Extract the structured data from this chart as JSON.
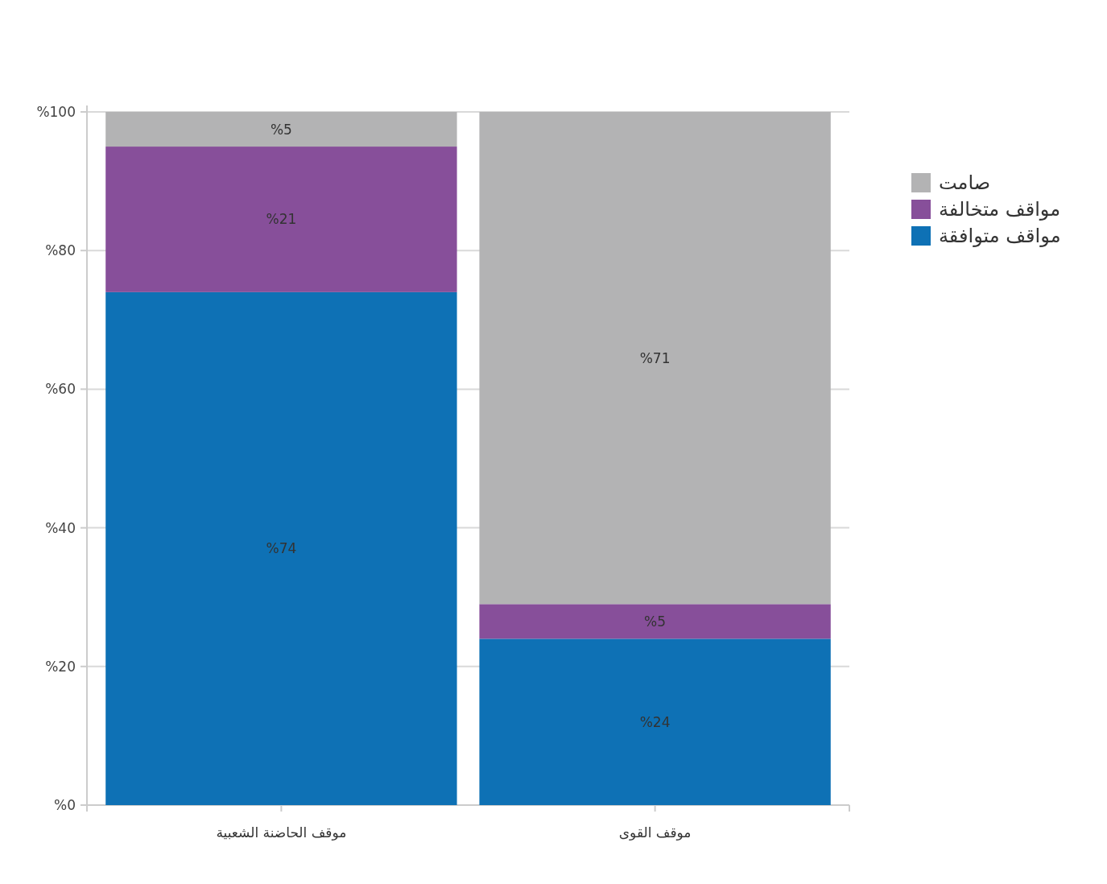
{
  "chart_data": {
    "type": "bar",
    "stacked": true,
    "categories": [
      "موقف الحاضنة الشعبية",
      "موقف القوى"
    ],
    "series": [
      {
        "name": "مواقف متوافقة",
        "color": "#0e71b5",
        "values": [
          74,
          24
        ],
        "value_labels": [
          "%74",
          "%24"
        ]
      },
      {
        "name": "مواقف متخالفة",
        "color": "#874f9a",
        "values": [
          21,
          5
        ],
        "value_labels": [
          "%21",
          "%5"
        ]
      },
      {
        "name": "صامت",
        "color": "#b3b3b4",
        "values": [
          5,
          71
        ],
        "value_labels": [
          "%5",
          "%71"
        ]
      }
    ],
    "ylim": [
      0,
      100
    ],
    "yticks": [
      {
        "value": 0,
        "label": "%0"
      },
      {
        "value": 20,
        "label": "%20"
      },
      {
        "value": 40,
        "label": "%40"
      },
      {
        "value": 60,
        "label": "%60"
      },
      {
        "value": 80,
        "label": "%80"
      },
      {
        "value": 100,
        "label": "%100"
      }
    ],
    "grid": "y",
    "legend": "right"
  }
}
